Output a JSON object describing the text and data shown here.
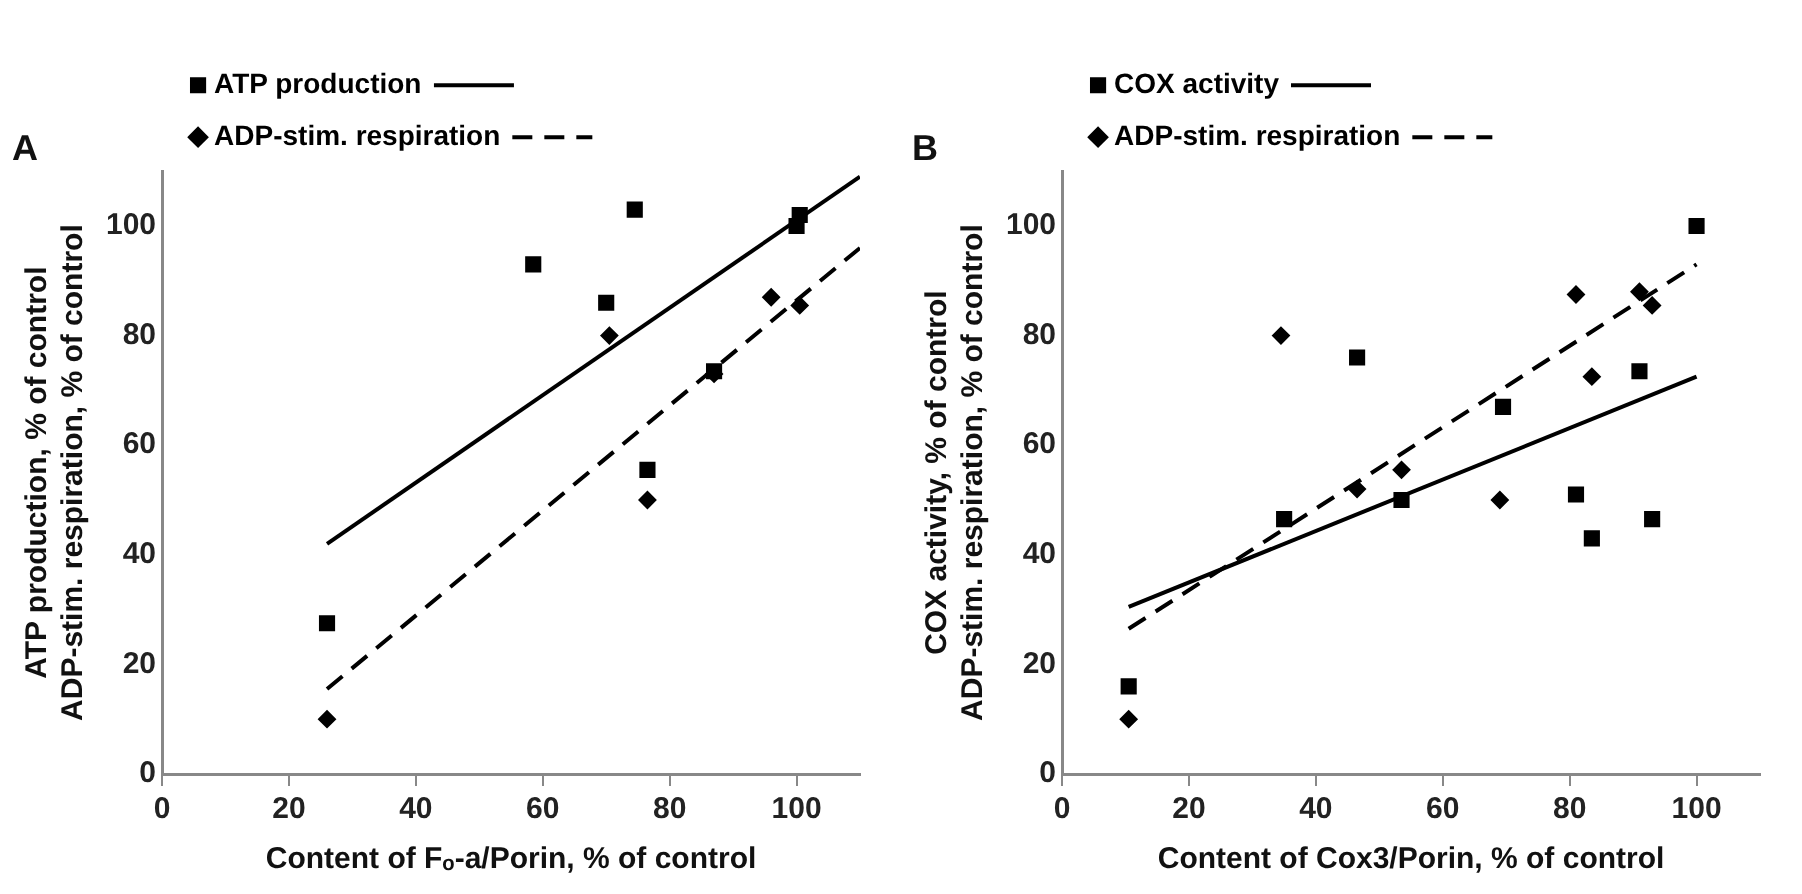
{
  "chart_data": [
    {
      "type": "scatter",
      "title": "A",
      "xlabel": "Content of Fₒ-a/Porin, % of control",
      "ylabel": "ATP production, % of control\nADP-stim. respiration, % of control",
      "xlim": [
        0,
        110
      ],
      "xticks": [
        0,
        20,
        40,
        60,
        80,
        100
      ],
      "ylim": [
        0,
        110
      ],
      "yticks": [
        0,
        20,
        40,
        60,
        80,
        100
      ],
      "grid": false,
      "legend": "top left",
      "series": [
        {
          "name": "ATP production",
          "color": "#000000",
          "marker": "square",
          "x": [
            26,
            58.5,
            70,
            74.5,
            76.5,
            87,
            100,
            100.5
          ],
          "values": [
            27.5,
            93,
            86,
            103,
            55.5,
            73.5,
            100,
            102
          ]
        },
        {
          "type": "line",
          "color": "#000000",
          "line_style": "solid",
          "marker": "none",
          "x": [
            26,
            110
          ],
          "values": [
            42,
            109
          ]
        },
        {
          "name": "ADP-stim. respiration",
          "color": "#000000",
          "marker": "diamond",
          "x": [
            26,
            70.5,
            76.5,
            87,
            96,
            100.5
          ],
          "values": [
            10,
            80,
            50,
            73,
            87,
            85.5
          ]
        },
        {
          "type": "line",
          "color": "#000000",
          "line_style": "dashed",
          "marker": "none",
          "x": [
            26,
            110
          ],
          "values": [
            15.5,
            96
          ]
        }
      ]
    },
    {
      "type": "scatter",
      "title": "B",
      "xlabel": "Content of Cox3/Porin, % of control",
      "ylabel": "COX activity, % of control\nADP-stim. respiration, % of control",
      "xlim": [
        0,
        110
      ],
      "xticks": [
        0,
        20,
        40,
        60,
        80,
        100
      ],
      "ylim": [
        0,
        110
      ],
      "yticks": [
        0,
        20,
        40,
        60,
        80,
        100
      ],
      "grid": false,
      "legend": "top left",
      "series": [
        {
          "name": "COX activity",
          "color": "#000000",
          "marker": "square",
          "x": [
            10.5,
            35,
            46.5,
            53.5,
            69.5,
            81,
            83.5,
            91,
            93,
            100
          ],
          "values": [
            16,
            46.5,
            76,
            50,
            67,
            51,
            43,
            73.5,
            46.5,
            100
          ]
        },
        {
          "type": "line",
          "color": "#000000",
          "line_style": "solid",
          "marker": "none",
          "x": [
            10.5,
            100
          ],
          "values": [
            30.5,
            72.5
          ]
        },
        {
          "name": "ADP-stim. respiration",
          "color": "#000000",
          "marker": "diamond",
          "x": [
            10.5,
            34.5,
            46.5,
            53.5,
            69,
            81,
            83.5,
            91,
            93
          ],
          "values": [
            10,
            80,
            52,
            55.5,
            50,
            87.5,
            72.5,
            88,
            85.5
          ]
        },
        {
          "type": "line",
          "color": "#000000",
          "line_style": "dashed",
          "marker": "none",
          "x": [
            10.5,
            100
          ],
          "values": [
            26.5,
            93
          ]
        }
      ]
    }
  ]
}
